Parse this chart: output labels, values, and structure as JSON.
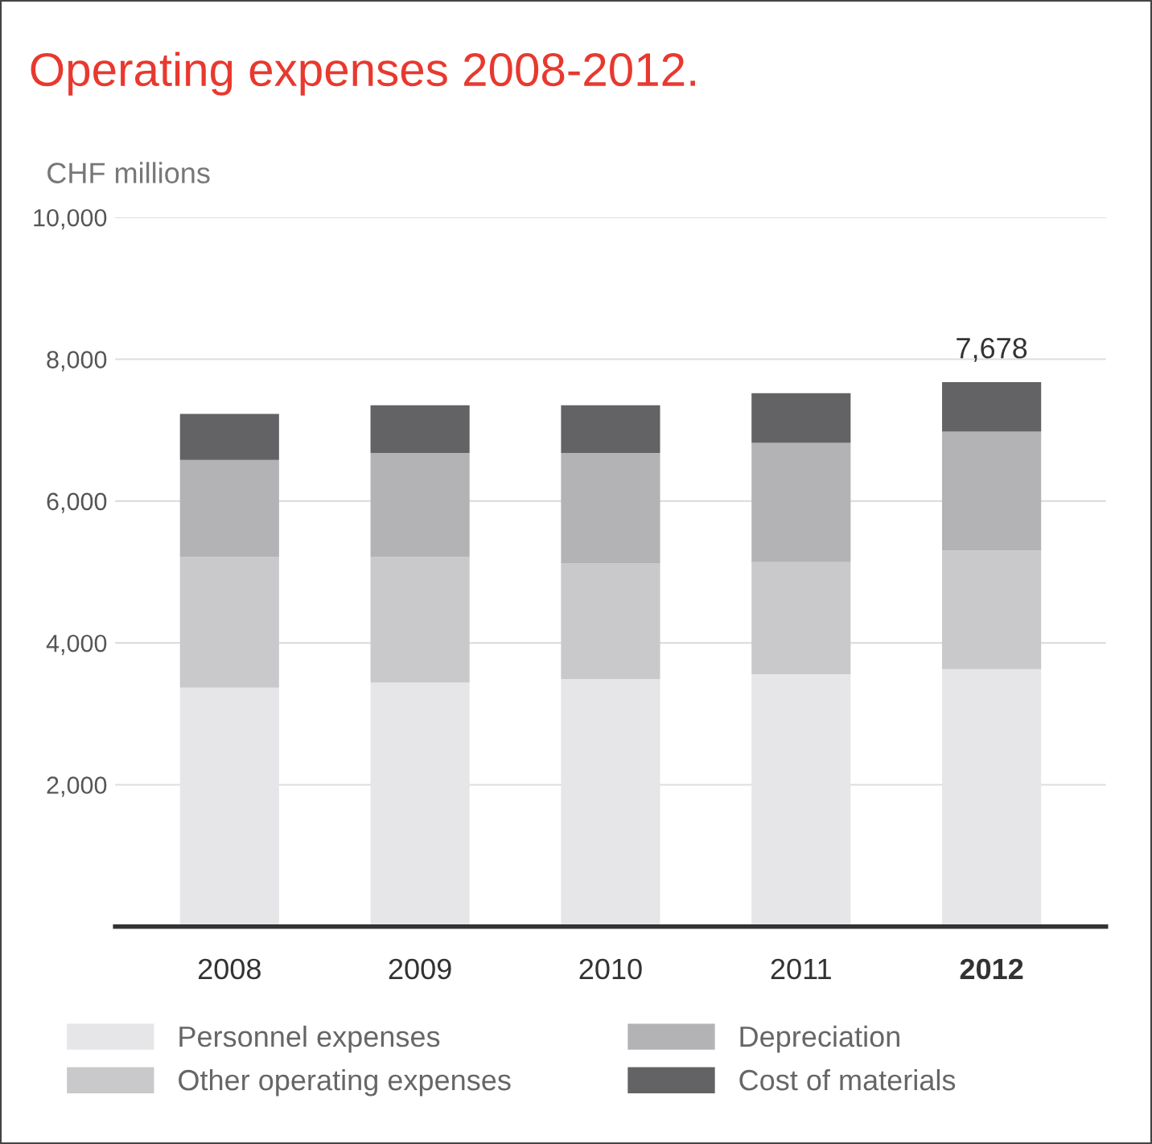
{
  "chart_data": {
    "type": "bar",
    "title": "Operating expenses 2008-2012.",
    "ylabel": "CHF millions",
    "categories": [
      "2008",
      "2009",
      "2010",
      "2011",
      "2012"
    ],
    "series": [
      {
        "name": "Personnel expenses",
        "color": "#e6e6e8",
        "values": [
          3370,
          3440,
          3490,
          3560,
          3630
        ]
      },
      {
        "name": "Other operating expenses",
        "color": "#c9c9cb",
        "values": [
          1840,
          1770,
          1630,
          1580,
          1670
        ]
      },
      {
        "name": "Depreciation",
        "color": "#b3b3b5",
        "values": [
          1370,
          1470,
          1560,
          1680,
          1680
        ]
      },
      {
        "name": "Cost of materials",
        "color": "#636366",
        "values": [
          650,
          670,
          670,
          700,
          698
        ]
      }
    ],
    "stacked": true,
    "ylim": [
      0,
      10000
    ],
    "yticks": [
      {
        "value": 2000,
        "label": "2,000"
      },
      {
        "value": 4000,
        "label": "4,000"
      },
      {
        "value": 6000,
        "label": "6,000"
      },
      {
        "value": 8000,
        "label": "8,000"
      },
      {
        "value": 10000,
        "label": "10,000"
      }
    ],
    "annotations": [
      {
        "text": "7,678",
        "x": "2012",
        "y": 7678
      }
    ],
    "grid": "y",
    "legend": "bottom"
  }
}
